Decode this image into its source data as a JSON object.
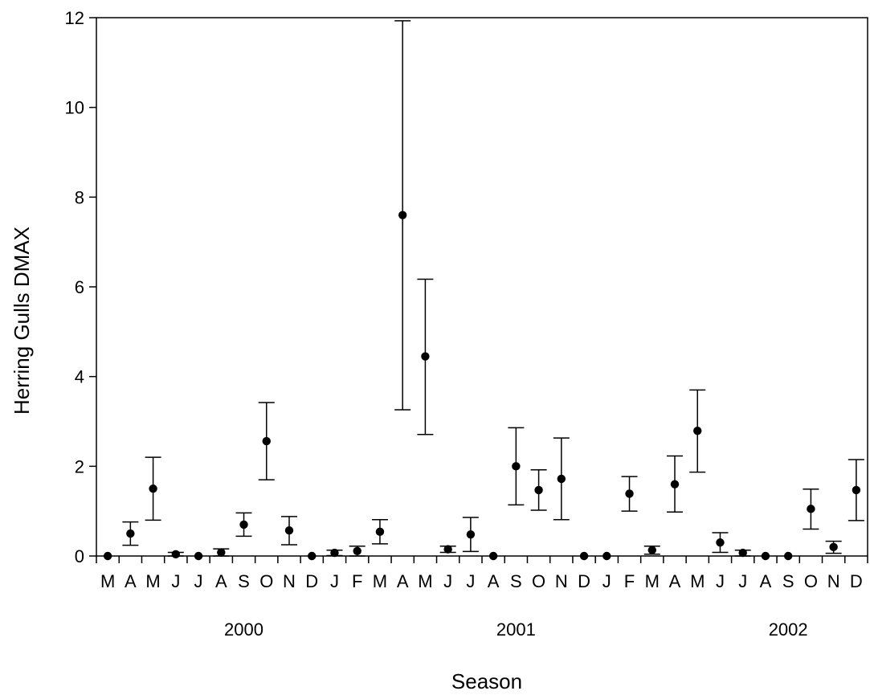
{
  "chart_data": {
    "type": "scatter",
    "title": "",
    "xlabel": "Season",
    "ylabel": "Herring Gulls DMAX",
    "ylim": [
      0,
      12
    ],
    "yticks": [
      0,
      2,
      4,
      6,
      8,
      10,
      12
    ],
    "grid": false,
    "legend": "none",
    "marker_color": "#000000",
    "categories": [
      "M",
      "A",
      "M",
      "J",
      "J",
      "A",
      "S",
      "O",
      "N",
      "D",
      "J",
      "F",
      "M",
      "A",
      "M",
      "J",
      "J",
      "A",
      "S",
      "O",
      "N",
      "D",
      "J",
      "F",
      "M",
      "A",
      "M",
      "J",
      "J",
      "A",
      "S",
      "O",
      "N",
      "D"
    ],
    "year_labels": [
      {
        "label": "2000",
        "center": 6.5
      },
      {
        "label": "2001",
        "center": 18.5
      },
      {
        "label": "2002",
        "center": 30.5
      }
    ],
    "series": [
      {
        "values": [
          0,
          0.5,
          1.5,
          0.04,
          0,
          0.08,
          0.7,
          2.56,
          0.57,
          0,
          0.07,
          0.11,
          0.54,
          7.6,
          4.45,
          0.15,
          0.48,
          0,
          2.0,
          1.47,
          1.72,
          0,
          0,
          1.39,
          0.13,
          1.6,
          2.79,
          0.3,
          0.07,
          0,
          0,
          1.05,
          0.2,
          1.47
        ],
        "lower": [
          null,
          0.24,
          0.8,
          0,
          null,
          0,
          0.44,
          1.7,
          0.25,
          null,
          0.01,
          0,
          0.27,
          3.26,
          2.71,
          0.08,
          0.1,
          null,
          1.14,
          1.02,
          0.81,
          null,
          null,
          1.0,
          0.04,
          0.98,
          1.87,
          0.08,
          0,
          null,
          null,
          0.6,
          0.06,
          0.79
        ],
        "upper": [
          null,
          0.76,
          2.2,
          0.08,
          null,
          0.16,
          0.96,
          3.42,
          0.88,
          null,
          0.13,
          0.22,
          0.81,
          11.93,
          6.17,
          0.22,
          0.86,
          null,
          2.86,
          1.92,
          2.63,
          null,
          null,
          1.77,
          0.22,
          2.23,
          3.7,
          0.52,
          0.13,
          null,
          null,
          1.49,
          0.33,
          2.15
        ]
      }
    ]
  }
}
